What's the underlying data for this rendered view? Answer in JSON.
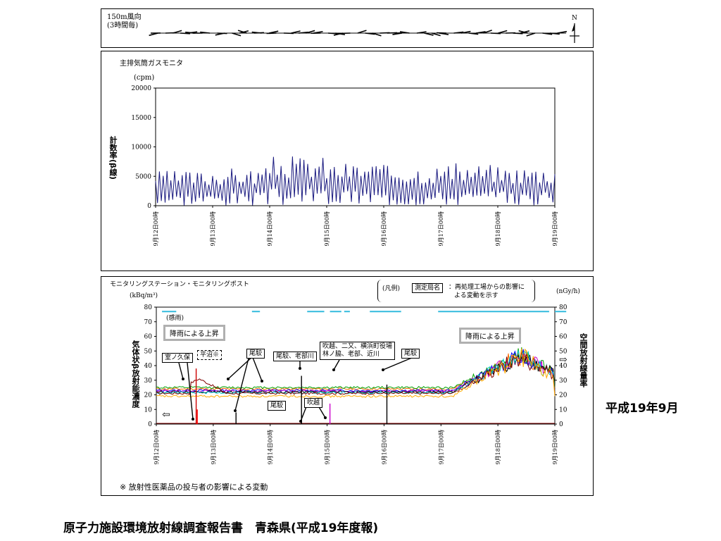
{
  "wind_panel": {
    "label_line1": "150m風向",
    "label_line2": "(3時間毎)",
    "north_label": "N"
  },
  "gas_monitor": {
    "title": "主排気筒ガスモニタ",
    "unit": "(cpm)",
    "ylabel": "計数率(β線)"
  },
  "monitoring": {
    "title": "モニタリングステーション・モニタリングポスト",
    "unit_left": "(kBq/m³)",
    "unit_right": "(nGy/h)",
    "ylabel_left": "気体状β放射能濃度",
    "ylabel_right": "空間放射線量率",
    "rain_label": "(感雨)",
    "legend_prefix": "(凡例)",
    "legend_box": "測定局名",
    "legend_text_line1": "：再処理工場からの影響に",
    "legend_text_line2": "よる変動を示す",
    "annotations": [
      {
        "text": "降雨による上昇"
      },
      {
        "text": "室ノ久保"
      },
      {
        "text": "平沼※"
      },
      {
        "text": "尾駮"
      },
      {
        "text": "尾駮、老部川"
      },
      {
        "text": "吹越、二又、横浜町役場"
      },
      {
        "text": "林ノ脇、老部、近川"
      },
      {
        "text": "尾駮"
      },
      {
        "text": "降雨による上昇"
      },
      {
        "text": "尾駮"
      },
      {
        "text": "吹越"
      }
    ]
  },
  "note": "※ 放射性医薬品の投与者の影響による変動",
  "side_caption": "平成19年9月",
  "footer": "原子力施設環境放射線調査報告書　青森県(平成19年度報)",
  "chart_data": [
    {
      "type": "line",
      "title": "主排気筒ガスモニタ",
      "ylabel": "計数率(β線)",
      "yunit": "cpm",
      "ylim": [
        0,
        20000
      ],
      "yticks": [
        0,
        5000,
        10000,
        15000,
        20000
      ],
      "xticks": [
        "9月12日00時",
        "9月13日00時",
        "9月14日00時",
        "9月15日00時",
        "9月16日00時",
        "9月17日00時",
        "9月18日00時",
        "9月19日00時"
      ],
      "color": "#1a1a80",
      "daily_peak_levels": [
        6000,
        6500,
        8500,
        7500,
        7000,
        7200,
        6800,
        7500
      ],
      "note": "pulsed series oscillating between 0 and the daily peak level"
    },
    {
      "type": "line",
      "title": "モニタリングステーション・モニタリングポスト",
      "ylabel_left": "気体状β放射能濃度",
      "yunit_left": "kBq/m3",
      "ylim_left": [
        0,
        80
      ],
      "ylabel_right": "空間放射線量率",
      "yunit_right": "nGy/h",
      "ylim_right": [
        0,
        80
      ],
      "yticks": [
        0,
        10,
        20,
        30,
        40,
        50,
        60,
        70,
        80
      ],
      "xticks": [
        "9月12日00時",
        "9月13日00時",
        "9月14日00時",
        "9月15日00時",
        "9月16日00時",
        "9月17日00時",
        "9月18日00時",
        "9月19日00時"
      ],
      "dose_rate_baselines": [
        {
          "color": "#ff6600",
          "value": 24
        },
        {
          "color": "#00a000",
          "value": 25
        },
        {
          "color": "#0000ff",
          "value": 23
        },
        {
          "color": "#cc00cc",
          "value": 22.5
        },
        {
          "color": "#000000",
          "value": 22
        },
        {
          "color": "#00cccc",
          "value": 21.5
        },
        {
          "color": "#800000",
          "value": 21
        },
        {
          "color": "#ffaa00",
          "value": 19
        }
      ],
      "rain_periods_day_fraction": [
        [
          0.1,
          0.35
        ],
        [
          1.68,
          1.82
        ],
        [
          2.65,
          2.95
        ],
        [
          3.05,
          3.25
        ],
        [
          3.3,
          3.4
        ],
        [
          3.75,
          4.3
        ],
        [
          4.95,
          6.9
        ],
        [
          7.0,
          7.2
        ]
      ],
      "rain_peak_day": 6.4,
      "rain_peak_value": 48,
      "spikes": [
        {
          "day": 0.7,
          "value": 38,
          "color": "#cc0000"
        },
        {
          "day": 0.72,
          "value": 10,
          "color": "#ff0000"
        },
        {
          "day": 1.4,
          "value": 8,
          "color": "#000000"
        },
        {
          "day": 2.55,
          "value": 33,
          "color": "#000000"
        },
        {
          "day": 2.55,
          "value": 6,
          "color": "#000000"
        },
        {
          "day": 3.05,
          "value": 14,
          "color": "#cc00cc"
        },
        {
          "day": 4.05,
          "value": 27,
          "color": "#000000"
        }
      ]
    }
  ]
}
